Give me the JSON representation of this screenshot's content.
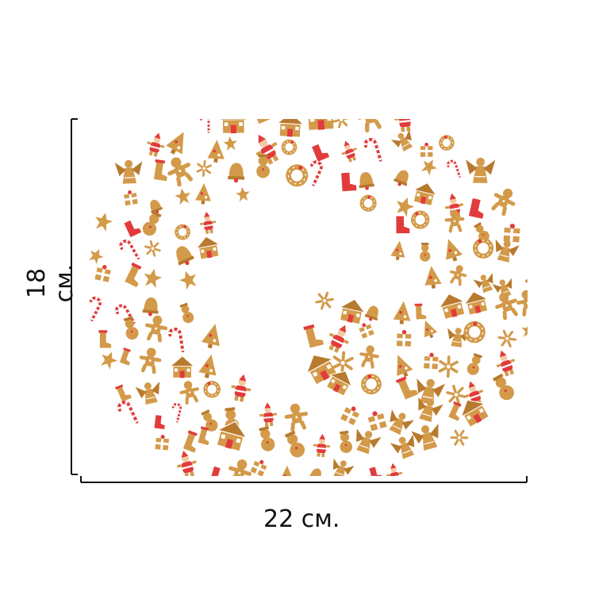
{
  "dimensions": {
    "width_label": "22 см.",
    "height_label": "18 см."
  },
  "colors": {
    "gingerbread": "#d39a4a",
    "gingerbread_dark": "#b77a2e",
    "icing": "#ffffff",
    "accent_red": "#e23b3b",
    "background": "#ffffff",
    "line": "#111111"
  },
  "pattern": {
    "letter": "Q",
    "icons": [
      "angel-icon",
      "gingerbread-man-icon",
      "gingerbread-house-icon",
      "santa-icon",
      "snowflake-icon",
      "star-icon",
      "wreath-icon",
      "bell-icon",
      "stocking-icon",
      "candy-cane-icon",
      "tree-icon",
      "gift-icon",
      "snowman-icon",
      "boot-icon"
    ]
  }
}
